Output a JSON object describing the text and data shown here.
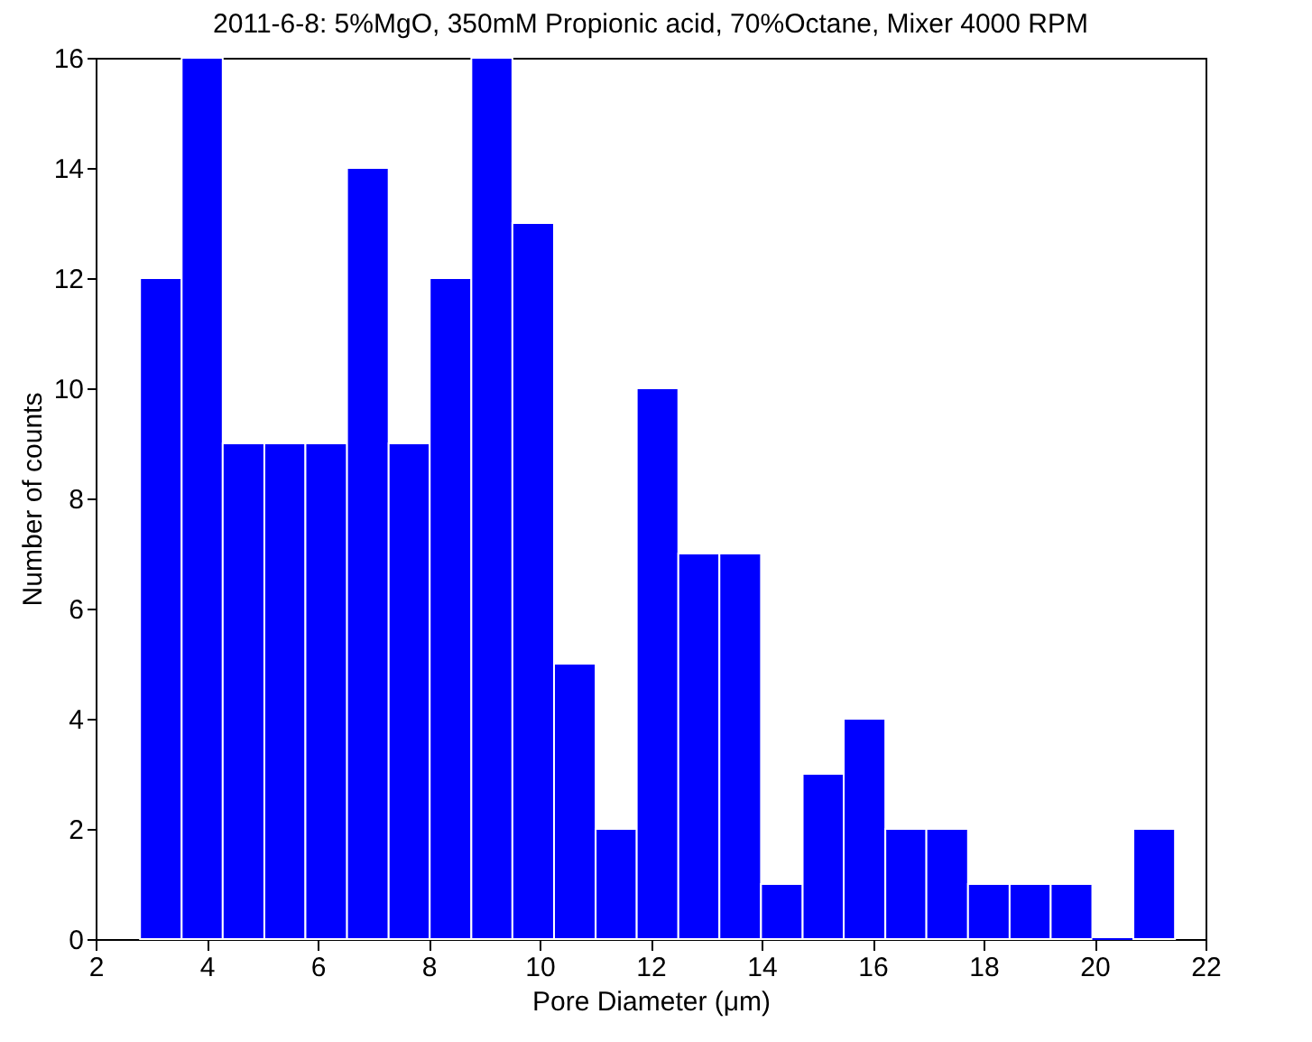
{
  "chart_data": {
    "type": "histogram",
    "title": "2011-6-8: 5%MgO, 350mM Propionic acid, 70%Octane, Mixer 4000 RPM",
    "xlabel": "Pore Diameter (μm)",
    "ylabel": "Number of counts",
    "bins": [
      2.8,
      3.55,
      4.29,
      5.04,
      5.78,
      6.53,
      7.28,
      8.02,
      8.77,
      9.51,
      10.26,
      11.01,
      11.75,
      12.5,
      13.24,
      13.99,
      14.74,
      15.48,
      16.23,
      16.97,
      17.72,
      18.47,
      19.21,
      19.96,
      20.7,
      21.45
    ],
    "values": [
      12,
      16,
      9,
      9,
      9,
      14,
      9,
      12,
      16,
      13,
      5,
      2,
      10,
      7,
      7,
      1,
      3,
      4,
      2,
      2,
      1,
      1,
      1,
      0,
      2
    ],
    "color": "#0000ff",
    "xlim": [
      2,
      22
    ],
    "xticks": [
      2,
      4,
      6,
      8,
      10,
      12,
      14,
      16,
      18,
      20,
      22
    ],
    "ylim": [
      0,
      16
    ],
    "yticks": [
      0,
      2,
      4,
      6,
      8,
      10,
      12,
      14,
      16
    ],
    "grid": false
  }
}
